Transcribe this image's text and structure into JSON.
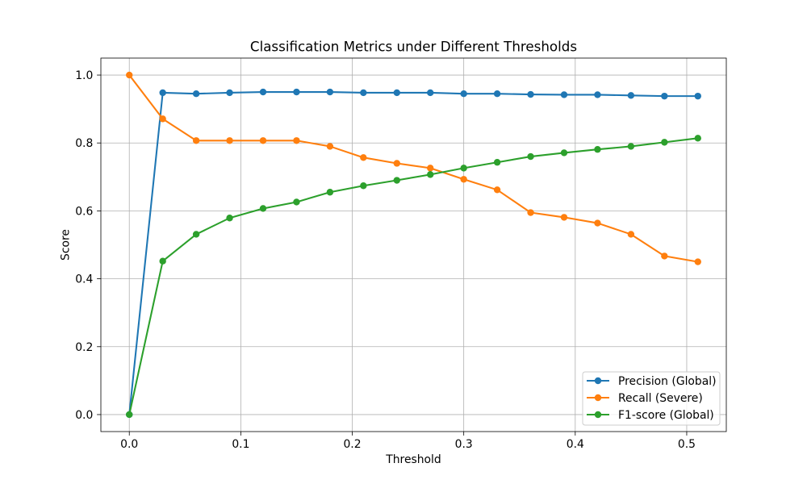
{
  "chart_data": {
    "type": "line",
    "title": "Classification Metrics under Different Thresholds",
    "xlabel": "Threshold",
    "ylabel": "Score",
    "x": [
      0.0,
      0.03,
      0.06,
      0.09,
      0.12,
      0.15,
      0.18,
      0.21,
      0.24,
      0.27,
      0.3,
      0.33,
      0.36,
      0.39,
      0.42,
      0.45,
      0.48,
      0.51
    ],
    "series": [
      {
        "name": "Precision (Global)",
        "color": "#1f77b4",
        "values": [
          0.0,
          0.948,
          0.945,
          0.948,
          0.95,
          0.95,
          0.95,
          0.948,
          0.948,
          0.948,
          0.945,
          0.945,
          0.943,
          0.942,
          0.942,
          0.94,
          0.938,
          0.938
        ]
      },
      {
        "name": "Recall (Severe)",
        "color": "#ff7f0e",
        "values": [
          1.0,
          0.871,
          0.807,
          0.807,
          0.807,
          0.807,
          0.79,
          0.757,
          0.74,
          0.726,
          0.693,
          0.662,
          0.595,
          0.581,
          0.564,
          0.531,
          0.467,
          0.45
        ]
      },
      {
        "name": "F1-score (Global)",
        "color": "#2ca02c",
        "values": [
          0.0,
          0.452,
          0.531,
          0.579,
          0.607,
          0.626,
          0.655,
          0.674,
          0.69,
          0.707,
          0.726,
          0.743,
          0.76,
          0.771,
          0.781,
          0.79,
          0.802,
          0.814
        ]
      }
    ],
    "xlim": [
      -0.0255,
      0.5355
    ],
    "ylim": [
      -0.05,
      1.05
    ],
    "x_ticks": [
      0.0,
      0.1,
      0.2,
      0.3,
      0.4,
      0.5
    ],
    "x_tick_labels": [
      "0.0",
      "0.1",
      "0.2",
      "0.3",
      "0.4",
      "0.5"
    ],
    "y_ticks": [
      0.0,
      0.2,
      0.4,
      0.6,
      0.8,
      1.0
    ],
    "y_tick_labels": [
      "0.0",
      "0.2",
      "0.4",
      "0.6",
      "0.8",
      "1.0"
    ],
    "grid": true,
    "legend_position": "lower right"
  }
}
